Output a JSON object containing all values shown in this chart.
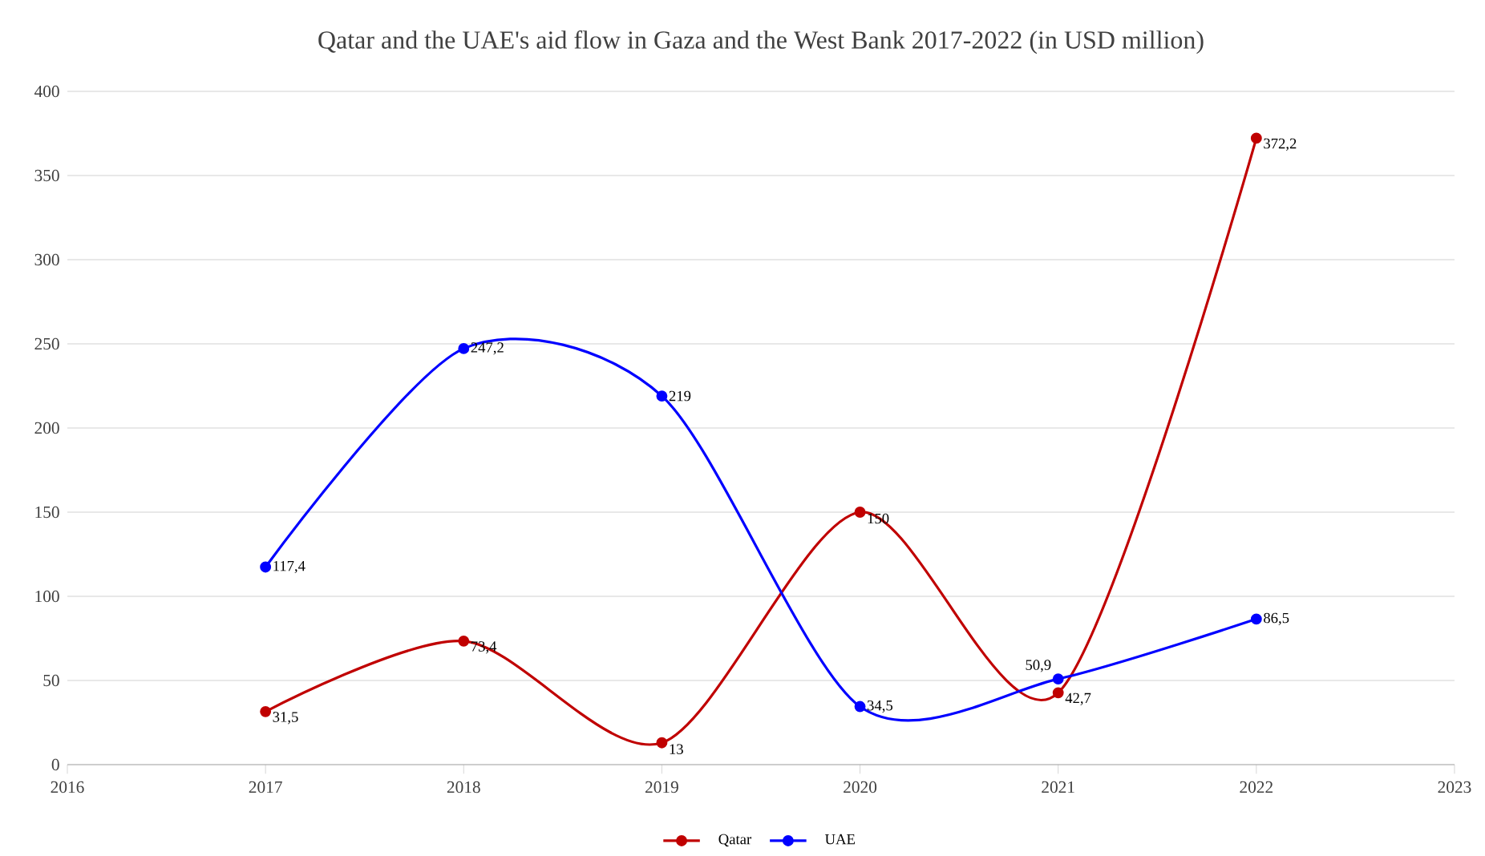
{
  "chart_data": {
    "type": "line",
    "title": "Qatar and the UAE's aid flow in Gaza and the West Bank 2017-2022 (in USD million)",
    "x": [
      2017,
      2018,
      2019,
      2020,
      2021,
      2022
    ],
    "series": [
      {
        "name": "Qatar",
        "color": "#c00000",
        "values": [
          31.5,
          73.4,
          13,
          150,
          42.7,
          372.2
        ],
        "value_labels": [
          "31,5",
          "73,4",
          "13",
          "150",
          "42,7",
          "372,2"
        ]
      },
      {
        "name": "UAE",
        "color": "#0000ff",
        "values": [
          117.4,
          247.2,
          219,
          34.5,
          50.9,
          86.5
        ],
        "value_labels": [
          "117,4",
          "247,2",
          "219",
          "34,5",
          "50,9",
          "86,5"
        ]
      }
    ],
    "xlim": [
      2016,
      2023
    ],
    "xticks": [
      2016,
      2017,
      2018,
      2019,
      2020,
      2021,
      2022,
      2023
    ],
    "ylim": [
      0,
      400
    ],
    "yticks": [
      0,
      50,
      100,
      150,
      200,
      250,
      300,
      350,
      400
    ],
    "grid": "y",
    "legend": "bottom",
    "marker": "circle",
    "line_style": "solid"
  }
}
